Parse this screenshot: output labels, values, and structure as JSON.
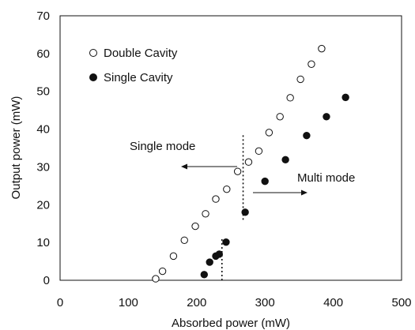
{
  "chart_data": {
    "type": "scatter",
    "title": "",
    "xlabel": "Absorbed power (mW)",
    "ylabel": "Output power (mW)",
    "xlim": [
      0,
      500
    ],
    "ylim": [
      0,
      70
    ],
    "xticks": [
      "0",
      "100",
      "200",
      "300",
      "400",
      "500"
    ],
    "yticks": [
      "0",
      "10",
      "20",
      "30",
      "40",
      "50",
      "60",
      "70"
    ],
    "grid": false,
    "legend_position": "top-left",
    "series": [
      {
        "name": "Double Cavity",
        "marker": "open-circle",
        "points": [
          [
            140,
            0.4
          ],
          [
            150,
            2.4
          ],
          [
            166,
            6.4
          ],
          [
            182,
            10.6
          ],
          [
            198,
            14.3
          ],
          [
            213,
            17.6
          ],
          [
            228,
            21.5
          ],
          [
            244,
            24.1
          ],
          [
            260,
            28.8
          ],
          [
            276,
            31.3
          ],
          [
            291,
            34.2
          ],
          [
            306,
            39.1
          ],
          [
            322,
            43.3
          ],
          [
            337,
            48.3
          ],
          [
            352,
            53.2
          ],
          [
            368,
            57.2
          ],
          [
            383,
            61.3
          ]
        ]
      },
      {
        "name": "Single Cavity",
        "marker": "filled-circle",
        "points": [
          [
            211,
            1.5
          ],
          [
            219,
            4.8
          ],
          [
            228,
            6.4
          ],
          [
            233,
            6.9
          ],
          [
            243,
            10.1
          ],
          [
            271,
            18.0
          ],
          [
            300,
            26.2
          ],
          [
            330,
            31.9
          ],
          [
            361,
            38.3
          ],
          [
            390,
            43.3
          ],
          [
            418,
            48.4
          ]
        ]
      }
    ],
    "annotations": [
      {
        "text": "Single mode",
        "arrow": "left"
      },
      {
        "text": "Multi mode",
        "arrow": "right"
      }
    ],
    "threshold_lines": [
      {
        "x": 237,
        "y_range": [
          0,
          11.5
        ]
      },
      {
        "x": 268,
        "y_range": [
          16,
          39
        ]
      }
    ]
  }
}
